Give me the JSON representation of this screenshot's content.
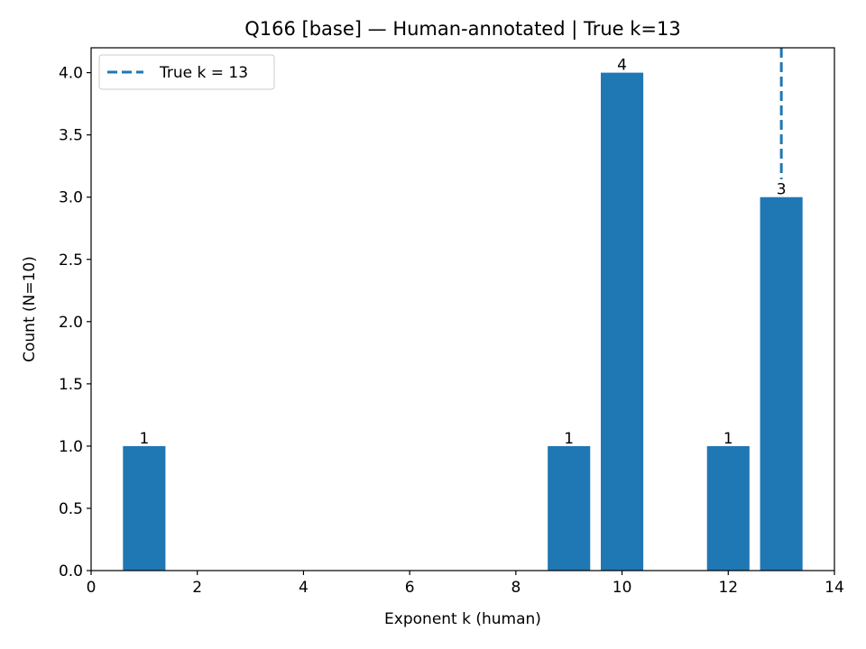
{
  "chart_data": {
    "type": "bar",
    "title": "Q166 [base] — Human-annotated | True k=13",
    "xlabel": "Exponent k (human)",
    "ylabel": "Count (N=10)",
    "x": [
      1,
      9,
      10,
      12,
      13
    ],
    "values": [
      1,
      1,
      4,
      1,
      3
    ],
    "data_labels": [
      "1",
      "1",
      "4",
      "1",
      "3"
    ],
    "xlim": [
      0,
      14
    ],
    "ylim": [
      0,
      4.2
    ],
    "xticks": [
      0,
      2,
      4,
      6,
      8,
      10,
      12,
      14
    ],
    "xtick_labels": [
      "0",
      "2",
      "4",
      "6",
      "8",
      "10",
      "12",
      "14"
    ],
    "yticks": [
      0,
      0.5,
      1,
      1.5,
      2,
      2.5,
      3,
      3.5,
      4
    ],
    "ytick_labels": [
      "0.0",
      "0.5",
      "1.0",
      "1.5",
      "2.0",
      "2.5",
      "3.0",
      "3.5",
      "4.0"
    ],
    "grid": false,
    "bar_color": "#1f77b4",
    "reference_line": {
      "x": 13,
      "style": "dashed",
      "color": "#1f77b4",
      "label": "True k = 13"
    },
    "legend": {
      "placement": "top-left",
      "entries": [
        "True k = 13"
      ]
    }
  }
}
